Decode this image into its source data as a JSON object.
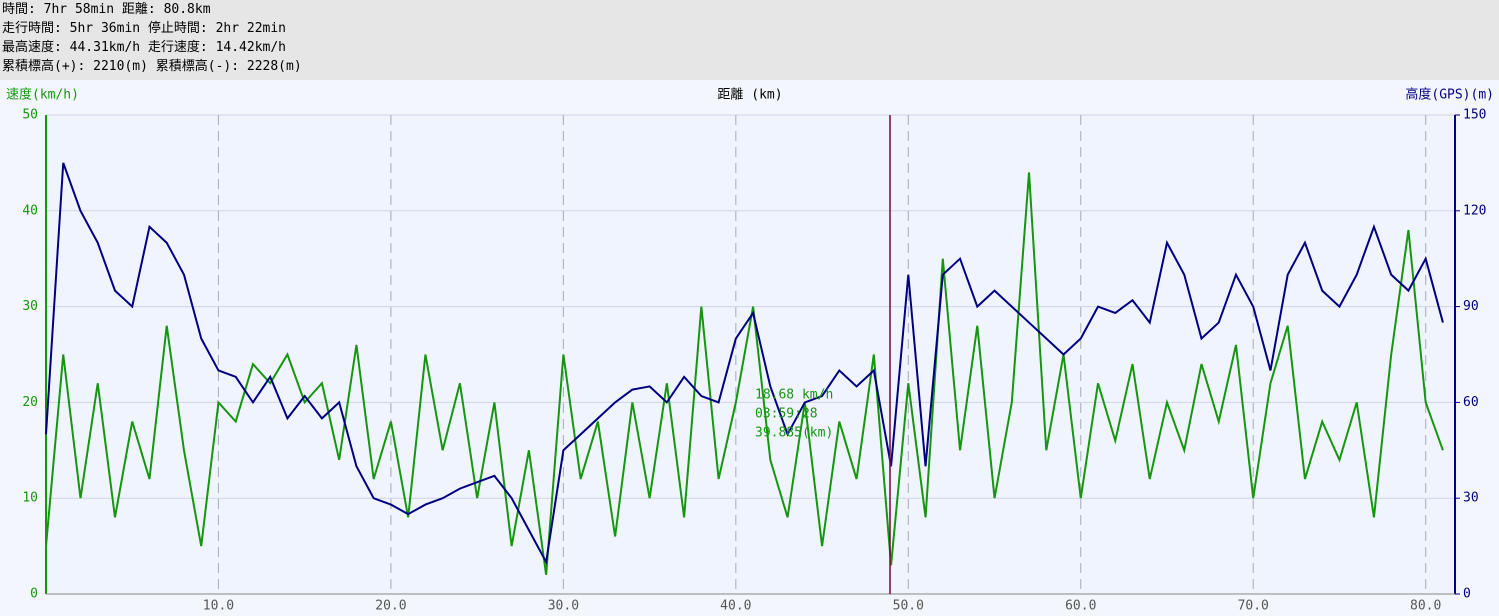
{
  "summary": [
    "時間: 7hr 58min 距離: 80.8km",
    "走行時間: 5hr 36min 停止時間: 2hr 22min",
    "最高速度: 44.31km/h 走行速度: 14.42km/h",
    "累積標高(+): 2210(m) 累積標高(-): 2228(m)"
  ],
  "chart_data": {
    "type": "line",
    "y_label": "速度(km/h)",
    "x_label": "距離 (km)",
    "y2_label": "高度(GPS)(m)",
    "xlim": [
      0,
      81.7
    ],
    "xticks": [
      {
        "value": 10,
        "label": "10.0"
      },
      {
        "value": 20,
        "label": "20.0"
      },
      {
        "value": 30,
        "label": "30.0"
      },
      {
        "value": 40,
        "label": "40.0"
      },
      {
        "value": 50,
        "label": "50.0"
      },
      {
        "value": 60,
        "label": "60.0"
      },
      {
        "value": 70,
        "label": "70.0"
      },
      {
        "value": 80,
        "label": "80.0"
      }
    ],
    "ylim": [
      0,
      50
    ],
    "yticks": [
      0,
      10,
      20,
      30,
      40,
      50
    ],
    "y2lim": [
      0,
      150
    ],
    "y2ticks": [
      0,
      30,
      60,
      90,
      120,
      150
    ],
    "grid": true,
    "x": [
      0,
      1,
      2,
      3,
      4,
      5,
      6,
      7,
      8,
      9,
      10,
      11,
      12,
      13,
      14,
      15,
      16,
      17,
      18,
      19,
      20,
      21,
      22,
      23,
      24,
      25,
      26,
      27,
      28,
      29,
      30,
      31,
      32,
      33,
      34,
      35,
      36,
      37,
      38,
      39,
      40,
      41,
      42,
      43,
      44,
      45,
      46,
      47,
      48,
      49,
      50,
      51,
      52,
      53,
      54,
      55,
      56,
      57,
      58,
      59,
      60,
      61,
      62,
      63,
      64,
      65,
      66,
      67,
      68,
      69,
      70,
      71,
      72,
      73,
      74,
      75,
      76,
      77,
      78,
      79,
      80,
      81
    ],
    "series": [
      {
        "name": "速度",
        "color": "#16960f",
        "values": [
          5,
          25,
          10,
          22,
          8,
          18,
          12,
          28,
          15,
          5,
          20,
          18,
          24,
          22,
          25,
          20,
          22,
          14,
          26,
          12,
          18,
          8,
          25,
          15,
          22,
          10,
          20,
          5,
          15,
          2,
          25,
          12,
          18,
          6,
          20,
          10,
          22,
          8,
          30,
          12,
          20,
          30,
          14,
          8,
          20,
          5,
          18,
          12,
          25,
          3,
          22,
          8,
          35,
          15,
          28,
          10,
          20,
          44,
          15,
          25,
          10,
          22,
          16,
          24,
          12,
          20,
          15,
          24,
          18,
          26,
          10,
          22,
          28,
          12,
          18,
          14,
          20,
          8,
          25,
          38,
          20,
          15
        ]
      },
      {
        "name": "高度",
        "color": "#000080",
        "axis": "y2",
        "values": [
          50,
          135,
          120,
          110,
          95,
          90,
          115,
          110,
          100,
          80,
          70,
          68,
          60,
          68,
          55,
          62,
          55,
          60,
          40,
          30,
          28,
          25,
          28,
          30,
          33,
          35,
          37,
          30,
          20,
          10,
          45,
          50,
          55,
          60,
          64,
          65,
          60,
          68,
          62,
          60,
          80,
          88,
          65,
          50,
          60,
          62,
          70,
          65,
          70,
          40,
          100,
          40,
          100,
          105,
          90,
          95,
          90,
          85,
          80,
          75,
          80,
          90,
          88,
          92,
          85,
          110,
          100,
          80,
          85,
          100,
          90,
          70,
          100,
          110,
          95,
          90,
          100,
          115,
          100,
          95,
          105,
          85
        ]
      }
    ],
    "tooltip": [
      "18.68 km/h",
      "03:59:28",
      "39.885(km)"
    ]
  }
}
